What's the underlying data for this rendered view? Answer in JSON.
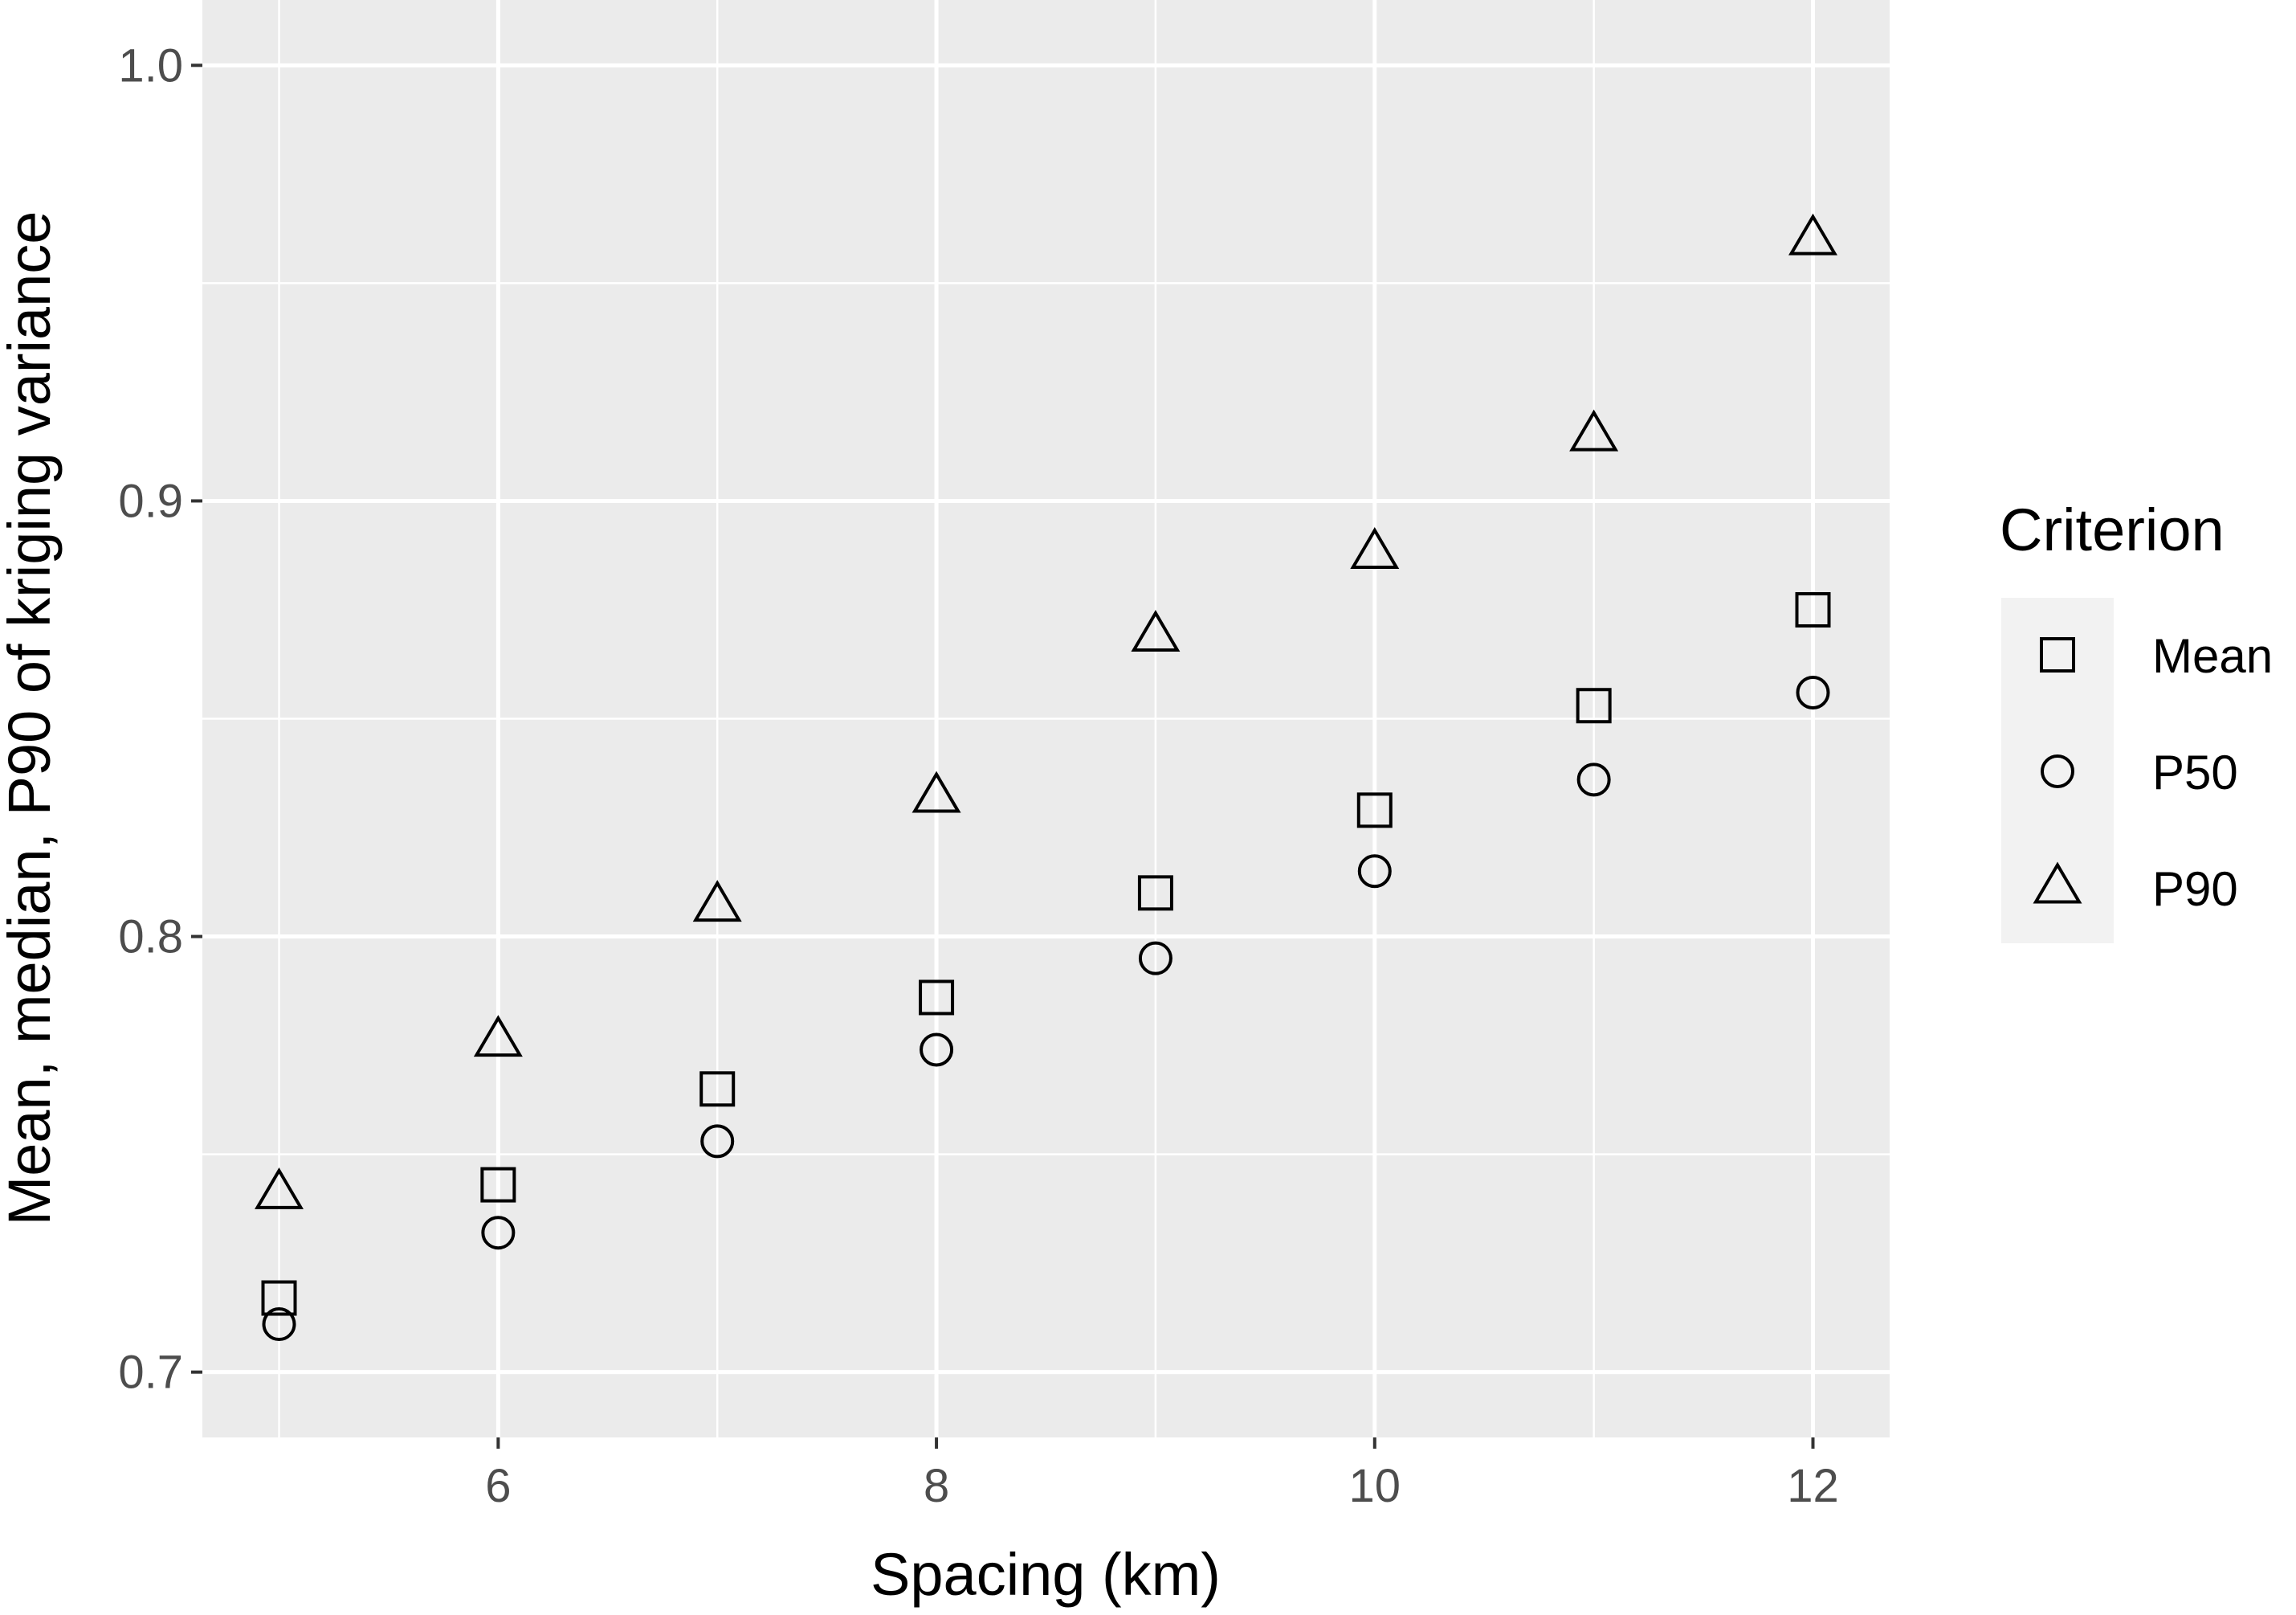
{
  "chart_data": {
    "type": "scatter",
    "title": "",
    "xlabel": "Spacing (km)",
    "ylabel": "Mean, median, P90 of kriging variance",
    "xlim": [
      4.65,
      12.35
    ],
    "ylim": [
      0.685,
      1.015
    ],
    "x_ticks": [
      6,
      8,
      10,
      12
    ],
    "x_tick_labels": [
      "6",
      "8",
      "10",
      "12"
    ],
    "y_ticks": [
      0.7,
      0.8,
      0.9,
      1.0
    ],
    "y_tick_labels": [
      "0.7",
      "0.8",
      "0.9",
      "1.0"
    ],
    "x": [
      5,
      6,
      7,
      8,
      9,
      10,
      11,
      12
    ],
    "series": [
      {
        "name": "Mean",
        "shape": "square",
        "values": [
          0.717,
          0.743,
          0.765,
          0.786,
          0.81,
          0.829,
          0.853,
          0.875
        ]
      },
      {
        "name": "P50",
        "shape": "circle",
        "values": [
          0.711,
          0.732,
          0.753,
          0.774,
          0.795,
          0.815,
          0.836,
          0.856
        ]
      },
      {
        "name": "P90",
        "shape": "triangle",
        "values": [
          0.741,
          0.776,
          0.807,
          0.832,
          0.869,
          0.888,
          0.915,
          0.96
        ]
      }
    ],
    "legend": {
      "title": "Criterion",
      "placement": "right"
    },
    "grid": true,
    "background_color": "#ebebeb",
    "grid_color": "#ffffff",
    "marker_color": "#000000"
  }
}
